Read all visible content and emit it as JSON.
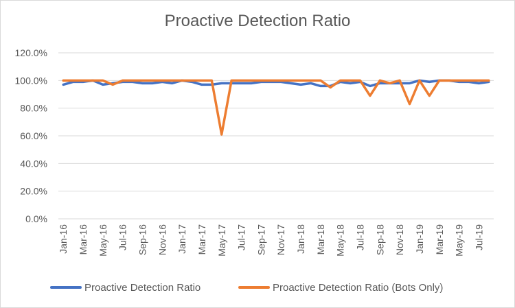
{
  "chart_data": {
    "type": "line",
    "title": "Proactive Detection Ratio",
    "xlabel": "",
    "ylabel": "",
    "ylim": [
      0,
      1.2
    ],
    "y_ticks": [
      "0.0%",
      "20.0%",
      "40.0%",
      "60.0%",
      "80.0%",
      "100.0%",
      "120.0%"
    ],
    "y_tick_values": [
      0,
      0.2,
      0.4,
      0.6,
      0.8,
      1.0,
      1.2
    ],
    "x": [
      "Jan-16",
      "Feb-16",
      "Mar-16",
      "Apr-16",
      "May-16",
      "Jun-16",
      "Jul-16",
      "Aug-16",
      "Sep-16",
      "Oct-16",
      "Nov-16",
      "Dec-16",
      "Jan-17",
      "Feb-17",
      "Mar-17",
      "Apr-17",
      "May-17",
      "Jun-17",
      "Jul-17",
      "Aug-17",
      "Sep-17",
      "Oct-17",
      "Nov-17",
      "Dec-17",
      "Jan-18",
      "Feb-18",
      "Mar-18",
      "Apr-18",
      "May-18",
      "Jun-18",
      "Jul-18",
      "Aug-18",
      "Sep-18",
      "Oct-18",
      "Nov-18",
      "Dec-18",
      "Jan-19",
      "Feb-19",
      "Mar-19",
      "Apr-19",
      "May-19",
      "Jun-19",
      "Jul-19",
      "Aug-19"
    ],
    "x_tick_labels": [
      "Jan-16",
      "Mar-16",
      "May-16",
      "Jul-16",
      "Sep-16",
      "Nov-16",
      "Jan-17",
      "Mar-17",
      "May-17",
      "Jul-17",
      "Sep-17",
      "Nov-17",
      "Jan-18",
      "Mar-18",
      "May-18",
      "Jul-18",
      "Sep-18",
      "Nov-18",
      "Jan-19",
      "Mar-19",
      "May-19",
      "Jul-19"
    ],
    "grid": true,
    "legend_position": "bottom",
    "series": [
      {
        "name": "Proactive Detection Ratio",
        "color": "#4472C4",
        "values": [
          0.97,
          0.99,
          0.99,
          1.0,
          0.97,
          0.98,
          0.99,
          0.99,
          0.98,
          0.98,
          0.99,
          0.98,
          1.0,
          0.99,
          0.97,
          0.97,
          0.98,
          0.98,
          0.98,
          0.98,
          0.99,
          0.99,
          0.99,
          0.98,
          0.97,
          0.98,
          0.96,
          0.96,
          0.99,
          0.98,
          0.99,
          0.96,
          0.98,
          0.98,
          0.98,
          0.98,
          1.0,
          0.99,
          1.0,
          1.0,
          0.99,
          0.99,
          0.98,
          0.99
        ]
      },
      {
        "name": "Proactive Detection Ratio (Bots Only)",
        "color": "#ED7D31",
        "values": [
          1.0,
          1.0,
          1.0,
          1.0,
          1.0,
          0.97,
          1.0,
          1.0,
          1.0,
          1.0,
          1.0,
          1.0,
          1.0,
          1.0,
          1.0,
          1.0,
          0.61,
          1.0,
          1.0,
          1.0,
          1.0,
          1.0,
          1.0,
          1.0,
          1.0,
          1.0,
          1.0,
          0.95,
          1.0,
          1.0,
          1.0,
          0.89,
          1.0,
          0.98,
          1.0,
          0.83,
          1.0,
          0.89,
          1.0,
          1.0,
          1.0,
          1.0,
          1.0,
          1.0
        ]
      }
    ]
  }
}
